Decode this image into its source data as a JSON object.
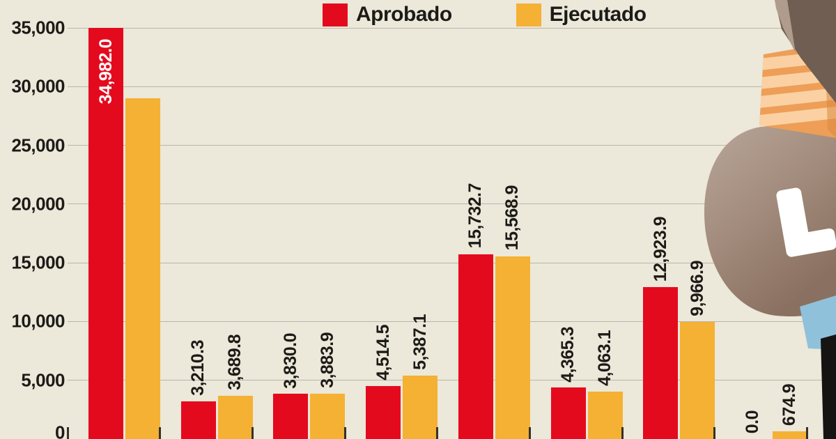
{
  "colors": {
    "background": "#ece8da",
    "gridline": "#b9b6aa",
    "text": "#1d1b17",
    "aprobado_red": "#e40a1e",
    "ejecutado_orange": "#f5b134"
  },
  "legend": {
    "items": [
      {
        "label": "Aprobado",
        "color": "#e40a1e"
      },
      {
        "label": "Ejecutado",
        "color": "#f5b134"
      }
    ]
  },
  "chart_data": {
    "type": "bar",
    "title": "",
    "legend_position": "top",
    "grid": true,
    "ylim": [
      0,
      35000
    ],
    "ytick_labels": [
      "35,000",
      "30,000",
      "25,000",
      "20,000",
      "15,000",
      "10,000",
      "5,000",
      "0"
    ],
    "categories": [
      "",
      "",
      "",
      "",
      "",
      "",
      "",
      ""
    ],
    "series": [
      {
        "name": "Aprobado",
        "color": "#e40a1e",
        "bars": [
          {
            "value": 34982.0,
            "label": "34,982.0",
            "label_inside": true
          },
          {
            "value": 3210.3,
            "label": "3,210.3"
          },
          {
            "value": 3830.0,
            "label": "3,830.0"
          },
          {
            "value": 4514.5,
            "label": "4,514.5"
          },
          {
            "value": 15732.7,
            "label": "15,732.7"
          },
          {
            "value": 4365.3,
            "label": "4,365.3"
          },
          {
            "value": 12923.9,
            "label": "12,923.9"
          },
          {
            "value": 0.0,
            "label": "0.0"
          }
        ]
      },
      {
        "name": "Ejecutado",
        "color": "#f5b134",
        "bars": [
          {
            "value": 29000,
            "label": ""
          },
          {
            "value": 3689.8,
            "label": "3,689.8"
          },
          {
            "value": 3883.9,
            "label": "3,883.9"
          },
          {
            "value": 5387.1,
            "label": "5,387.1"
          },
          {
            "value": 15568.9,
            "label": "15,568.9"
          },
          {
            "value": 4063.1,
            "label": "4,063.1"
          },
          {
            "value": 9966.9,
            "label": "9,966.9"
          },
          {
            "value": 674.9,
            "label": "674.9"
          }
        ]
      }
    ]
  },
  "illustration": {
    "type": "money-bag-cartoon",
    "currency_letter": "L",
    "colors": {
      "bag": "#a18a7b",
      "bag_light": "#b9a79a",
      "bag_dark": "#8a7060",
      "rope_light": "#fbd1a3",
      "rope_dark": "#ee9e57",
      "sack_top": "#6f5e51",
      "sleeve_blue": "#8fc1da",
      "figure_black": "#161412"
    }
  }
}
